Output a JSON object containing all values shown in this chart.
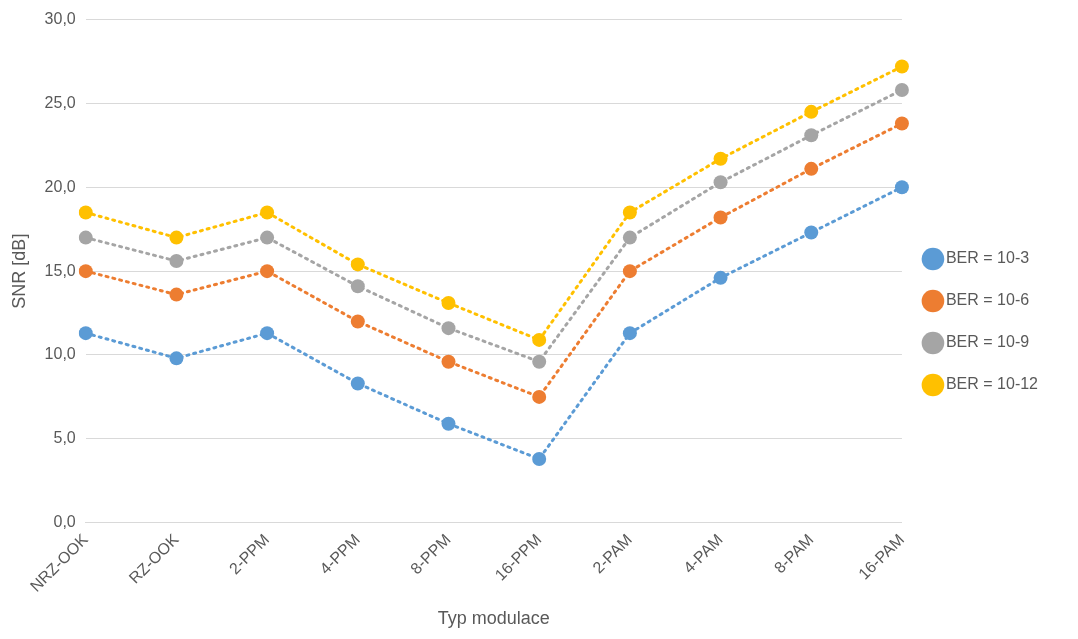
{
  "chart_data": {
    "type": "line",
    "xlabel": "Typ modulace",
    "ylabel": "SNR [dB]",
    "categories": [
      "NRZ-OOK",
      "RZ-OOK",
      "2-PPM",
      "4-PPM",
      "8-PPM",
      "16-PPM",
      "2-PAM",
      "4-PAM",
      "8-PAM",
      "16-PAM"
    ],
    "series": [
      {
        "name": "BER = 10-3",
        "color": "#5b9bd5",
        "values": [
          11.3,
          9.8,
          11.3,
          8.3,
          5.9,
          3.8,
          11.3,
          14.6,
          17.3,
          20.0
        ]
      },
      {
        "name": "BER = 10-6",
        "color": "#ed7d31",
        "values": [
          15.0,
          13.6,
          15.0,
          12.0,
          9.6,
          7.5,
          15.0,
          18.2,
          21.1,
          23.8
        ]
      },
      {
        "name": "BER = 10-9",
        "color": "#a5a5a5",
        "values": [
          17.0,
          15.6,
          17.0,
          14.1,
          11.6,
          9.6,
          17.0,
          20.3,
          23.1,
          25.8
        ]
      },
      {
        "name": "BER = 10-12",
        "color": "#ffc000",
        "values": [
          18.5,
          17.0,
          18.5,
          15.4,
          13.1,
          10.9,
          18.5,
          21.7,
          24.5,
          27.2
        ]
      }
    ],
    "ylim": [
      0,
      30
    ],
    "yticks": [
      {
        "value": 0,
        "label": "0,0"
      },
      {
        "value": 5,
        "label": "5,0"
      },
      {
        "value": 10,
        "label": "10,0"
      },
      {
        "value": 15,
        "label": "15,0"
      },
      {
        "value": 20,
        "label": "20,0"
      },
      {
        "value": 25,
        "label": "25,0"
      },
      {
        "value": 30,
        "label": "30,0"
      }
    ],
    "grid": "y",
    "legend": "right",
    "marker": "circle",
    "line_style": "dotted"
  }
}
